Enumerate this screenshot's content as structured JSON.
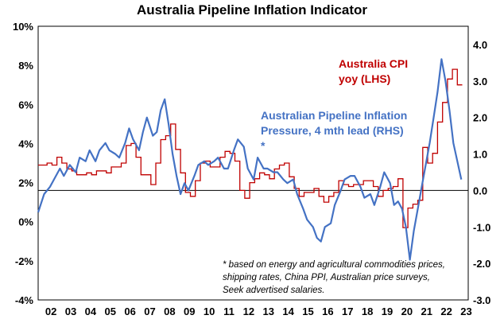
{
  "chart_data": {
    "type": "line",
    "title": "Australia Pipeline Inflation Indicator",
    "x_tick_labels": [
      "02",
      "03",
      "04",
      "05",
      "06",
      "07",
      "08",
      "09",
      "10",
      "11",
      "12",
      "13",
      "14",
      "15",
      "16",
      "17",
      "18",
      "19",
      "20",
      "21",
      "22",
      "23"
    ],
    "left_axis": {
      "ylim": [
        -4,
        10
      ],
      "tick_labels": [
        "-4%",
        "-2%",
        "0%",
        "2%",
        "4%",
        "6%",
        "8%",
        "10%"
      ]
    },
    "right_axis": {
      "ylim": [
        -3,
        4.5
      ],
      "tick_labels": [
        "-3.0",
        "-2.0",
        "-1.0",
        "0.0",
        "1.0",
        "2.0",
        "3.0",
        "4.0"
      ]
    },
    "grid": false,
    "series": [
      {
        "name": "Australia CPI yoy (LHS)",
        "axis": "left",
        "color": "#c00000",
        "step": true,
        "x": [
          2001.8,
          2002.25,
          2002.5,
          2002.75,
          2003.0,
          2003.25,
          2003.5,
          2003.75,
          2004.0,
          2004.25,
          2004.5,
          2004.75,
          2005.0,
          2005.25,
          2005.5,
          2005.75,
          2006.0,
          2006.25,
          2006.5,
          2006.75,
          2007.0,
          2007.25,
          2007.5,
          2007.75,
          2008.0,
          2008.25,
          2008.5,
          2008.75,
          2009.0,
          2009.25,
          2009.5,
          2009.75,
          2010.0,
          2010.25,
          2010.5,
          2010.75,
          2011.0,
          2011.25,
          2011.5,
          2011.75,
          2012.0,
          2012.25,
          2012.5,
          2012.75,
          2013.0,
          2013.25,
          2013.5,
          2013.75,
          2014.0,
          2014.25,
          2014.5,
          2014.75,
          2015.0,
          2015.25,
          2015.5,
          2015.75,
          2016.0,
          2016.25,
          2016.5,
          2016.75,
          2017.0,
          2017.25,
          2017.5,
          2017.75,
          2018.0,
          2018.25,
          2018.5,
          2018.75,
          2019.0,
          2019.25,
          2019.5,
          2019.75,
          2020.0,
          2020.25,
          2020.5,
          2020.75,
          2021.0,
          2021.25,
          2021.5,
          2021.75,
          2022.0,
          2022.25,
          2022.5,
          2022.75,
          2023.0
        ],
        "y": [
          2.9,
          3.0,
          2.9,
          3.3,
          3.0,
          2.7,
          2.6,
          2.4,
          2.4,
          2.5,
          2.4,
          2.6,
          2.6,
          2.5,
          2.8,
          2.8,
          3.0,
          3.9,
          4.0,
          3.3,
          2.4,
          2.4,
          1.9,
          3.0,
          4.2,
          4.4,
          5.0,
          3.7,
          2.5,
          1.5,
          1.3,
          2.1,
          3.0,
          3.1,
          2.8,
          2.8,
          3.3,
          3.6,
          3.5,
          3.1,
          1.6,
          1.2,
          2.0,
          2.2,
          2.5,
          2.4,
          2.2,
          2.7,
          2.9,
          3.0,
          2.3,
          1.7,
          1.3,
          1.5,
          1.5,
          1.7,
          1.3,
          1.0,
          1.3,
          1.5,
          2.1,
          1.9,
          1.8,
          1.9,
          1.9,
          2.1,
          2.1,
          1.8,
          1.3,
          1.6,
          1.7,
          1.8,
          2.2,
          -0.3,
          0.7,
          0.9,
          1.1,
          3.8,
          3.0,
          3.5,
          5.1,
          6.1,
          7.3,
          7.8,
          7.0
        ]
      },
      {
        "name": "Australian Pipeline Inflation Pressure, 4 mth lead (RHS) *",
        "axis": "right",
        "color": "#4472c4",
        "step": false,
        "x": [
          2001.8,
          2002.1,
          2002.4,
          2002.6,
          2002.9,
          2003.1,
          2003.4,
          2003.7,
          2003.9,
          2004.2,
          2004.4,
          2004.7,
          2004.9,
          2005.2,
          2005.4,
          2005.7,
          2005.9,
          2006.2,
          2006.4,
          2006.6,
          2006.9,
          2007.1,
          2007.3,
          2007.6,
          2007.8,
          2008.0,
          2008.2,
          2008.4,
          2008.6,
          2008.8,
          2009.0,
          2009.2,
          2009.4,
          2009.7,
          2009.9,
          2010.2,
          2010.4,
          2010.7,
          2010.9,
          2011.2,
          2011.4,
          2011.7,
          2011.9,
          2012.2,
          2012.4,
          2012.7,
          2012.9,
          2013.2,
          2013.4,
          2013.7,
          2013.9,
          2014.2,
          2014.4,
          2014.7,
          2014.9,
          2015.2,
          2015.4,
          2015.7,
          2015.9,
          2016.1,
          2016.3,
          2016.6,
          2016.8,
          2017.1,
          2017.3,
          2017.6,
          2017.8,
          2018.1,
          2018.3,
          2018.6,
          2018.8,
          2019.1,
          2019.3,
          2019.6,
          2019.8,
          2020.0,
          2020.2,
          2020.4,
          2020.6,
          2020.8,
          2021.0,
          2021.2,
          2021.4,
          2021.6,
          2021.8,
          2022.0,
          2022.2,
          2022.4,
          2022.6,
          2022.8,
          2023.0,
          2023.2
        ],
        "y": [
          -0.6,
          -0.1,
          0.1,
          0.3,
          0.6,
          0.4,
          0.7,
          0.5,
          0.9,
          0.8,
          1.1,
          0.8,
          1.1,
          1.3,
          1.1,
          1.0,
          0.9,
          1.3,
          1.7,
          1.4,
          1.1,
          1.6,
          2.0,
          1.5,
          1.6,
          2.2,
          2.5,
          1.8,
          1.0,
          0.4,
          -0.1,
          0.2,
          0.0,
          0.4,
          0.7,
          0.8,
          0.7,
          0.8,
          0.9,
          0.6,
          0.6,
          1.1,
          1.4,
          1.2,
          0.6,
          0.3,
          0.9,
          0.6,
          0.6,
          0.5,
          0.5,
          0.3,
          0.2,
          0.3,
          -0.1,
          -0.5,
          -0.8,
          -1.0,
          -1.3,
          -1.4,
          -1.0,
          -0.9,
          -0.4,
          0.0,
          0.3,
          0.4,
          0.4,
          0.1,
          -0.2,
          -0.1,
          -0.4,
          0.1,
          0.5,
          0.2,
          -0.4,
          -0.3,
          -0.5,
          -1.0,
          -1.9,
          -1.1,
          -0.5,
          0.1,
          0.7,
          1.3,
          2.0,
          2.7,
          3.6,
          3.0,
          2.2,
          1.3,
          0.8,
          0.3
        ]
      }
    ],
    "annotations": {
      "cpi_label": [
        "Australia CPI",
        "yoy (LHS)"
      ],
      "pipeline_label": [
        "Australian Pipeline Inflation",
        "Pressure, 4 mth lead (RHS)",
        "*"
      ],
      "footnote": [
        "* based on energy and agricultural commodities prices,",
        "shipping rates, China PPI, Australian price surveys,",
        "Seek advertised salaries."
      ]
    }
  }
}
